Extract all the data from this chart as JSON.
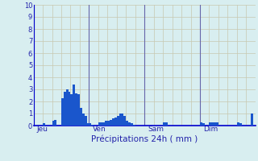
{
  "title": "Précipitations 24h ( mm )",
  "bar_color": "#1a56cc",
  "bg_color": "#d8eef0",
  "grid_color_h": "#c8c8b0",
  "grid_color_v": "#c8c8b0",
  "axis_line_color": "#0000cc",
  "day_line_color": "#6666aa",
  "ylim": [
    0,
    10
  ],
  "yticks": [
    0,
    1,
    2,
    3,
    4,
    5,
    6,
    7,
    8,
    9,
    10
  ],
  "day_labels": [
    "Jeu",
    "Ven",
    "Sam",
    "Dim"
  ],
  "day_positions": [
    0,
    24,
    48,
    72
  ],
  "num_bars": 96,
  "values": [
    0.0,
    0.0,
    0.0,
    0.0,
    0.2,
    0.0,
    0.0,
    0.0,
    0.4,
    0.5,
    0.0,
    0.0,
    2.3,
    2.8,
    3.0,
    2.8,
    2.6,
    3.4,
    2.7,
    2.6,
    1.5,
    1.0,
    0.8,
    0.2,
    0.2,
    0.1,
    0.0,
    0.0,
    0.3,
    0.3,
    0.3,
    0.4,
    0.4,
    0.5,
    0.6,
    0.7,
    0.8,
    1.0,
    1.0,
    0.8,
    0.4,
    0.3,
    0.2,
    0.1,
    0.0,
    0.0,
    0.0,
    0.0,
    0.0,
    0.0,
    0.0,
    0.0,
    0.0,
    0.0,
    0.0,
    0.0,
    0.3,
    0.3,
    0.0,
    0.0,
    0.0,
    0.0,
    0.0,
    0.0,
    0.0,
    0.0,
    0.0,
    0.0,
    0.0,
    0.0,
    0.0,
    0.0,
    0.3,
    0.2,
    0.0,
    0.0,
    0.3,
    0.3,
    0.3,
    0.3,
    0.0,
    0.0,
    0.0,
    0.0,
    0.0,
    0.0,
    0.0,
    0.0,
    0.3,
    0.2,
    0.0,
    0.0,
    0.0,
    0.0,
    1.0,
    0.0
  ]
}
